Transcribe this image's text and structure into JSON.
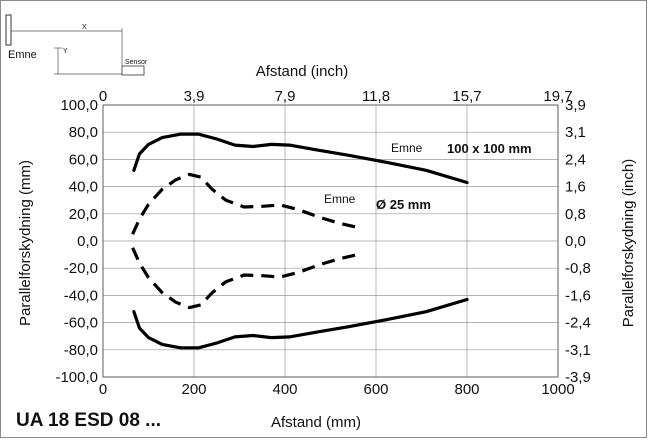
{
  "chart_data": {
    "type": "line",
    "title": "UA 18 ESD 08 ...",
    "xlabel": "Afstand (mm)",
    "x2label": "Afstand (inch)",
    "ylabel": "Parallelforskydning (mm)",
    "y2label": "Parallelforskydning (inch)",
    "xlim": [
      0,
      1000
    ],
    "ylim": [
      -100,
      100
    ],
    "grid": true,
    "x_ticks": [
      "0",
      "200",
      "400",
      "600",
      "800",
      "1000"
    ],
    "x2_ticks": [
      "0",
      "3,9",
      "7,9",
      "11,8",
      "15,7",
      "19,7"
    ],
    "y_ticks": [
      "100,0",
      "80,0",
      "60,0",
      "40,0",
      "20,0",
      "0,0",
      "-20,0",
      "-40,0",
      "-60,0",
      "-80,0",
      "-100,0"
    ],
    "y2_ticks": [
      "3,9",
      "3,1",
      "2,4",
      "1,6",
      "0,8",
      "0,0",
      "-0,8",
      "-1,6",
      "-2,4",
      "-3,1",
      "-3,9"
    ],
    "series": [
      {
        "name": "100 x 100 mm",
        "style": "solid",
        "x": [
          68,
          80,
          100,
          130,
          170,
          210,
          250,
          290,
          330,
          370,
          410,
          470,
          540,
          620,
          710,
          800
        ],
        "y": [
          52,
          64,
          71,
          76,
          78.5,
          78.5,
          75,
          70.5,
          69.5,
          71,
          70.5,
          67,
          63,
          58,
          52,
          43
        ]
      },
      {
        "name": "100 x 100 mm",
        "style": "solid",
        "x": [
          68,
          80,
          100,
          130,
          170,
          210,
          250,
          290,
          330,
          370,
          410,
          470,
          540,
          620,
          710,
          800
        ],
        "y": [
          -52,
          -64,
          -71,
          -76,
          -78.5,
          -78.5,
          -75,
          -70.5,
          -69.5,
          -71,
          -70.5,
          -67,
          -63,
          -58,
          -52,
          -43
        ]
      },
      {
        "name": "Ø 25 mm",
        "style": "dashed",
        "x": [
          65,
          80,
          100,
          130,
          160,
          190,
          215,
          240,
          270,
          310,
          350,
          390,
          430,
          480,
          520,
          560
        ],
        "y": [
          5,
          16,
          27,
          38,
          45,
          49,
          47,
          38,
          30,
          25,
          25.5,
          26.5,
          23,
          17,
          13,
          10
        ]
      },
      {
        "name": "Ø 25 mm",
        "style": "dashed",
        "x": [
          65,
          80,
          100,
          130,
          160,
          190,
          215,
          240,
          270,
          310,
          350,
          390,
          430,
          480,
          520,
          560
        ],
        "y": [
          -5,
          -16,
          -27,
          -38,
          -45,
          -49,
          -47,
          -38,
          -30,
          -25,
          -25.5,
          -26.5,
          -23,
          -17,
          -13,
          -10
        ]
      }
    ],
    "annotations": [
      {
        "text": "Emne",
        "label": "100 x 100 mm"
      },
      {
        "text": "Emne",
        "label": "Ø 25 mm"
      }
    ],
    "inset": {
      "emne": "Emne",
      "sensor": "Sensor",
      "x": "X",
      "y": "Y"
    }
  }
}
